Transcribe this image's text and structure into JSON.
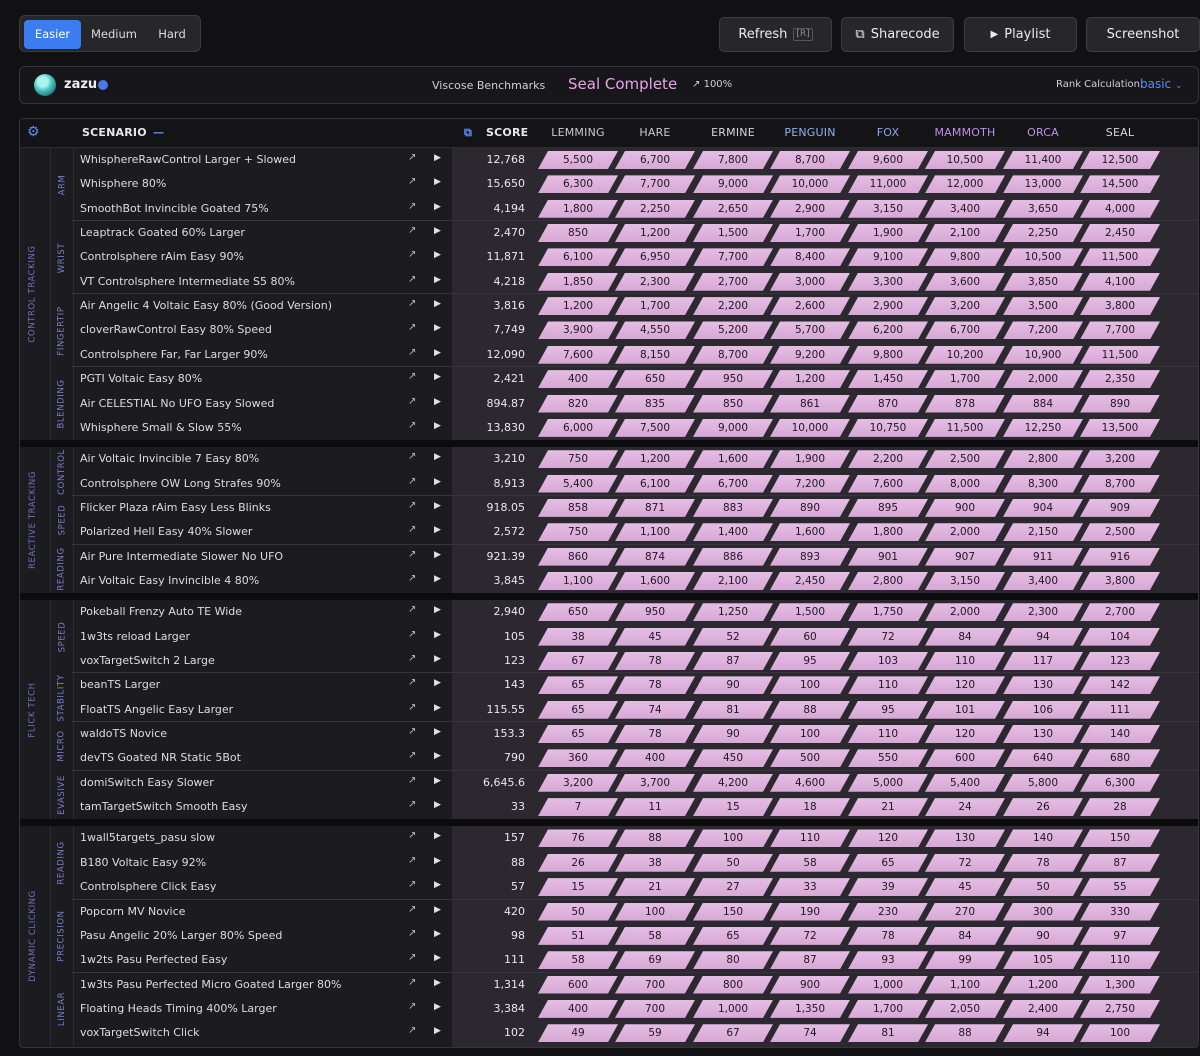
{
  "difficulty": {
    "options": [
      "Easier",
      "Medium",
      "Hard"
    ],
    "selected": "Easier"
  },
  "toolbar": {
    "refresh_label": "Refresh",
    "refresh_key": "[R]",
    "sharecode_label": "Sharecode",
    "playlist_label": "Playlist",
    "screenshot_label": "Screenshot"
  },
  "profile": {
    "username": "zazu",
    "benchmark_name": "Viscose Benchmarks",
    "rank": "Seal Complete",
    "progress": "100%",
    "rank_calc_label": "Rank Calculation:",
    "rank_calc_value": "basic"
  },
  "table": {
    "scenario_header": "SCENARIO",
    "score_header": "SCORE",
    "ranks": [
      {
        "name": "LEMMING",
        "color": "#c9c9d2"
      },
      {
        "name": "HARE",
        "color": "#c9c9d2"
      },
      {
        "name": "ERMINE",
        "color": "#d8d8e0"
      },
      {
        "name": "PENGUIN",
        "color": "#8fb3f0"
      },
      {
        "name": "FOX",
        "color": "#8fa7f0"
      },
      {
        "name": "MAMMOTH",
        "color": "#c08fe8"
      },
      {
        "name": "ORCA",
        "color": "#c08fe8"
      },
      {
        "name": "SEAL",
        "color": "#d8d8e0"
      }
    ]
  },
  "categories": [
    {
      "name": "CONTROL TRACKING",
      "groups": [
        {
          "name": "ARM",
          "rows": [
            {
              "s": "WhisphereRawControl Larger + Slowed",
              "score": "12,768",
              "t": [
                "5,500",
                "6,700",
                "7,800",
                "8,700",
                "9,600",
                "10,500",
                "11,400",
                "12,500"
              ]
            },
            {
              "s": "Whisphere 80%",
              "score": "15,650",
              "t": [
                "6,300",
                "7,700",
                "9,000",
                "10,000",
                "11,000",
                "12,000",
                "13,000",
                "14,500"
              ]
            },
            {
              "s": "SmoothBot Invincible Goated 75%",
              "score": "4,194",
              "t": [
                "1,800",
                "2,250",
                "2,650",
                "2,900",
                "3,150",
                "3,400",
                "3,650",
                "4,000"
              ]
            }
          ]
        },
        {
          "name": "WRIST",
          "rows": [
            {
              "s": "Leaptrack Goated 60% Larger",
              "score": "2,470",
              "t": [
                "850",
                "1,200",
                "1,500",
                "1,700",
                "1,900",
                "2,100",
                "2,250",
                "2,450"
              ]
            },
            {
              "s": "Controlsphere rAim Easy 90%",
              "score": "11,871",
              "t": [
                "6,100",
                "6,950",
                "7,700",
                "8,400",
                "9,100",
                "9,800",
                "10,500",
                "11,500"
              ]
            },
            {
              "s": "VT Controlsphere Intermediate S5 80%",
              "score": "4,218",
              "t": [
                "1,850",
                "2,300",
                "2,700",
                "3,000",
                "3,300",
                "3,600",
                "3,850",
                "4,100"
              ]
            }
          ]
        },
        {
          "name": "FINGERTIP",
          "rows": [
            {
              "s": "Air Angelic 4 Voltaic Easy 80% (Good Version)",
              "score": "3,816",
              "t": [
                "1,200",
                "1,700",
                "2,200",
                "2,600",
                "2,900",
                "3,200",
                "3,500",
                "3,800"
              ]
            },
            {
              "s": "cloverRawControl Easy 80% Speed",
              "score": "7,749",
              "t": [
                "3,900",
                "4,550",
                "5,200",
                "5,700",
                "6,200",
                "6,700",
                "7,200",
                "7,700"
              ]
            },
            {
              "s": "Controlsphere Far, Far Larger 90%",
              "score": "12,090",
              "t": [
                "7,600",
                "8,150",
                "8,700",
                "9,200",
                "9,800",
                "10,200",
                "10,900",
                "11,500"
              ]
            }
          ]
        },
        {
          "name": "BLENDING",
          "rows": [
            {
              "s": "PGTI Voltaic Easy 80%",
              "score": "2,421",
              "t": [
                "400",
                "650",
                "950",
                "1,200",
                "1,450",
                "1,700",
                "2,000",
                "2,350"
              ]
            },
            {
              "s": "Air CELESTIAL No UFO Easy Slowed",
              "score": "894.87",
              "t": [
                "820",
                "835",
                "850",
                "861",
                "870",
                "878",
                "884",
                "890"
              ]
            },
            {
              "s": "Whisphere Small & Slow 55%",
              "score": "13,830",
              "t": [
                "6,000",
                "7,500",
                "9,000",
                "10,000",
                "10,750",
                "11,500",
                "12,250",
                "13,500"
              ]
            }
          ]
        }
      ]
    },
    {
      "name": "REACTIVE TRACKING",
      "groups": [
        {
          "name": "CONTROL",
          "rows": [
            {
              "s": "Air Voltaic Invincible 7 Easy 80%",
              "score": "3,210",
              "t": [
                "750",
                "1,200",
                "1,600",
                "1,900",
                "2,200",
                "2,500",
                "2,800",
                "3,200"
              ]
            },
            {
              "s": "Controlsphere OW Long Strafes 90%",
              "score": "8,913",
              "t": [
                "5,400",
                "6,100",
                "6,700",
                "7,200",
                "7,600",
                "8,000",
                "8,300",
                "8,700"
              ]
            }
          ]
        },
        {
          "name": "SPEED",
          "rows": [
            {
              "s": "Flicker Plaza rAim Easy Less Blinks",
              "score": "918.05",
              "t": [
                "858",
                "871",
                "883",
                "890",
                "895",
                "900",
                "904",
                "909"
              ]
            },
            {
              "s": "Polarized Hell Easy 40% Slower",
              "score": "2,572",
              "t": [
                "750",
                "1,100",
                "1,400",
                "1,600",
                "1,800",
                "2,000",
                "2,150",
                "2,500"
              ]
            }
          ]
        },
        {
          "name": "READING",
          "rows": [
            {
              "s": "Air Pure Intermediate Slower No UFO",
              "score": "921.39",
              "t": [
                "860",
                "874",
                "886",
                "893",
                "901",
                "907",
                "911",
                "916"
              ]
            },
            {
              "s": "Air Voltaic Easy Invincible 4 80%",
              "score": "3,845",
              "t": [
                "1,100",
                "1,600",
                "2,100",
                "2,450",
                "2,800",
                "3,150",
                "3,400",
                "3,800"
              ]
            }
          ]
        }
      ]
    },
    {
      "name": "FLICK TECH",
      "groups": [
        {
          "name": "SPEED",
          "rows": [
            {
              "s": "Pokeball Frenzy Auto TE Wide",
              "score": "2,940",
              "t": [
                "650",
                "950",
                "1,250",
                "1,500",
                "1,750",
                "2,000",
                "2,300",
                "2,700"
              ]
            },
            {
              "s": "1w3ts reload Larger",
              "score": "105",
              "t": [
                "38",
                "45",
                "52",
                "60",
                "72",
                "84",
                "94",
                "104"
              ]
            },
            {
              "s": "voxTargetSwitch 2 Large",
              "score": "123",
              "t": [
                "67",
                "78",
                "87",
                "95",
                "103",
                "110",
                "117",
                "123"
              ]
            }
          ]
        },
        {
          "name": "STABILITY",
          "rows": [
            {
              "s": "beanTS Larger",
              "score": "143",
              "t": [
                "65",
                "78",
                "90",
                "100",
                "110",
                "120",
                "130",
                "142"
              ]
            },
            {
              "s": "FloatTS Angelic Easy Larger",
              "score": "115.55",
              "t": [
                "65",
                "74",
                "81",
                "88",
                "95",
                "101",
                "106",
                "111"
              ]
            }
          ]
        },
        {
          "name": "MICRO",
          "rows": [
            {
              "s": "waldoTS Novice",
              "score": "153.3",
              "t": [
                "65",
                "78",
                "90",
                "100",
                "110",
                "120",
                "130",
                "140"
              ]
            },
            {
              "s": "devTS Goated NR Static 5Bot",
              "score": "790",
              "t": [
                "360",
                "400",
                "450",
                "500",
                "550",
                "600",
                "640",
                "680"
              ]
            }
          ]
        },
        {
          "name": "EVASIVE",
          "rows": [
            {
              "s": "domiSwitch Easy Slower",
              "score": "6,645.6",
              "t": [
                "3,200",
                "3,700",
                "4,200",
                "4,600",
                "5,000",
                "5,400",
                "5,800",
                "6,300"
              ]
            },
            {
              "s": "tamTargetSwitch Smooth Easy",
              "score": "33",
              "t": [
                "7",
                "11",
                "15",
                "18",
                "21",
                "24",
                "26",
                "28"
              ]
            }
          ]
        }
      ]
    },
    {
      "name": "DYNAMIC CLICKING",
      "groups": [
        {
          "name": "READING",
          "rows": [
            {
              "s": "1wall5targets_pasu slow",
              "score": "157",
              "t": [
                "76",
                "88",
                "100",
                "110",
                "120",
                "130",
                "140",
                "150"
              ]
            },
            {
              "s": "B180 Voltaic Easy 92%",
              "score": "88",
              "t": [
                "26",
                "38",
                "50",
                "58",
                "65",
                "72",
                "78",
                "87"
              ]
            },
            {
              "s": "Controlsphere Click Easy",
              "score": "57",
              "t": [
                "15",
                "21",
                "27",
                "33",
                "39",
                "45",
                "50",
                "55"
              ]
            }
          ]
        },
        {
          "name": "PRECISION",
          "rows": [
            {
              "s": "Popcorn MV Novice",
              "score": "420",
              "t": [
                "50",
                "100",
                "150",
                "190",
                "230",
                "270",
                "300",
                "330"
              ]
            },
            {
              "s": "Pasu Angelic 20% Larger 80% Speed",
              "score": "98",
              "t": [
                "51",
                "58",
                "65",
                "72",
                "78",
                "84",
                "90",
                "97"
              ]
            },
            {
              "s": "1w2ts Pasu Perfected Easy",
              "score": "111",
              "t": [
                "58",
                "69",
                "80",
                "87",
                "93",
                "99",
                "105",
                "110"
              ]
            }
          ]
        },
        {
          "name": "LINEAR",
          "rows": [
            {
              "s": "1w3ts Pasu Perfected Micro Goated Larger 80%",
              "score": "1,314",
              "t": [
                "600",
                "700",
                "800",
                "900",
                "1,000",
                "1,100",
                "1,200",
                "1,300"
              ]
            },
            {
              "s": "Floating Heads Timing 400% Larger",
              "score": "3,384",
              "t": [
                "400",
                "700",
                "1,000",
                "1,350",
                "1,700",
                "2,050",
                "2,400",
                "2,750"
              ]
            },
            {
              "s": "voxTargetSwitch Click",
              "score": "102",
              "t": [
                "49",
                "59",
                "67",
                "74",
                "81",
                "88",
                "94",
                "100"
              ]
            }
          ]
        }
      ]
    }
  ]
}
